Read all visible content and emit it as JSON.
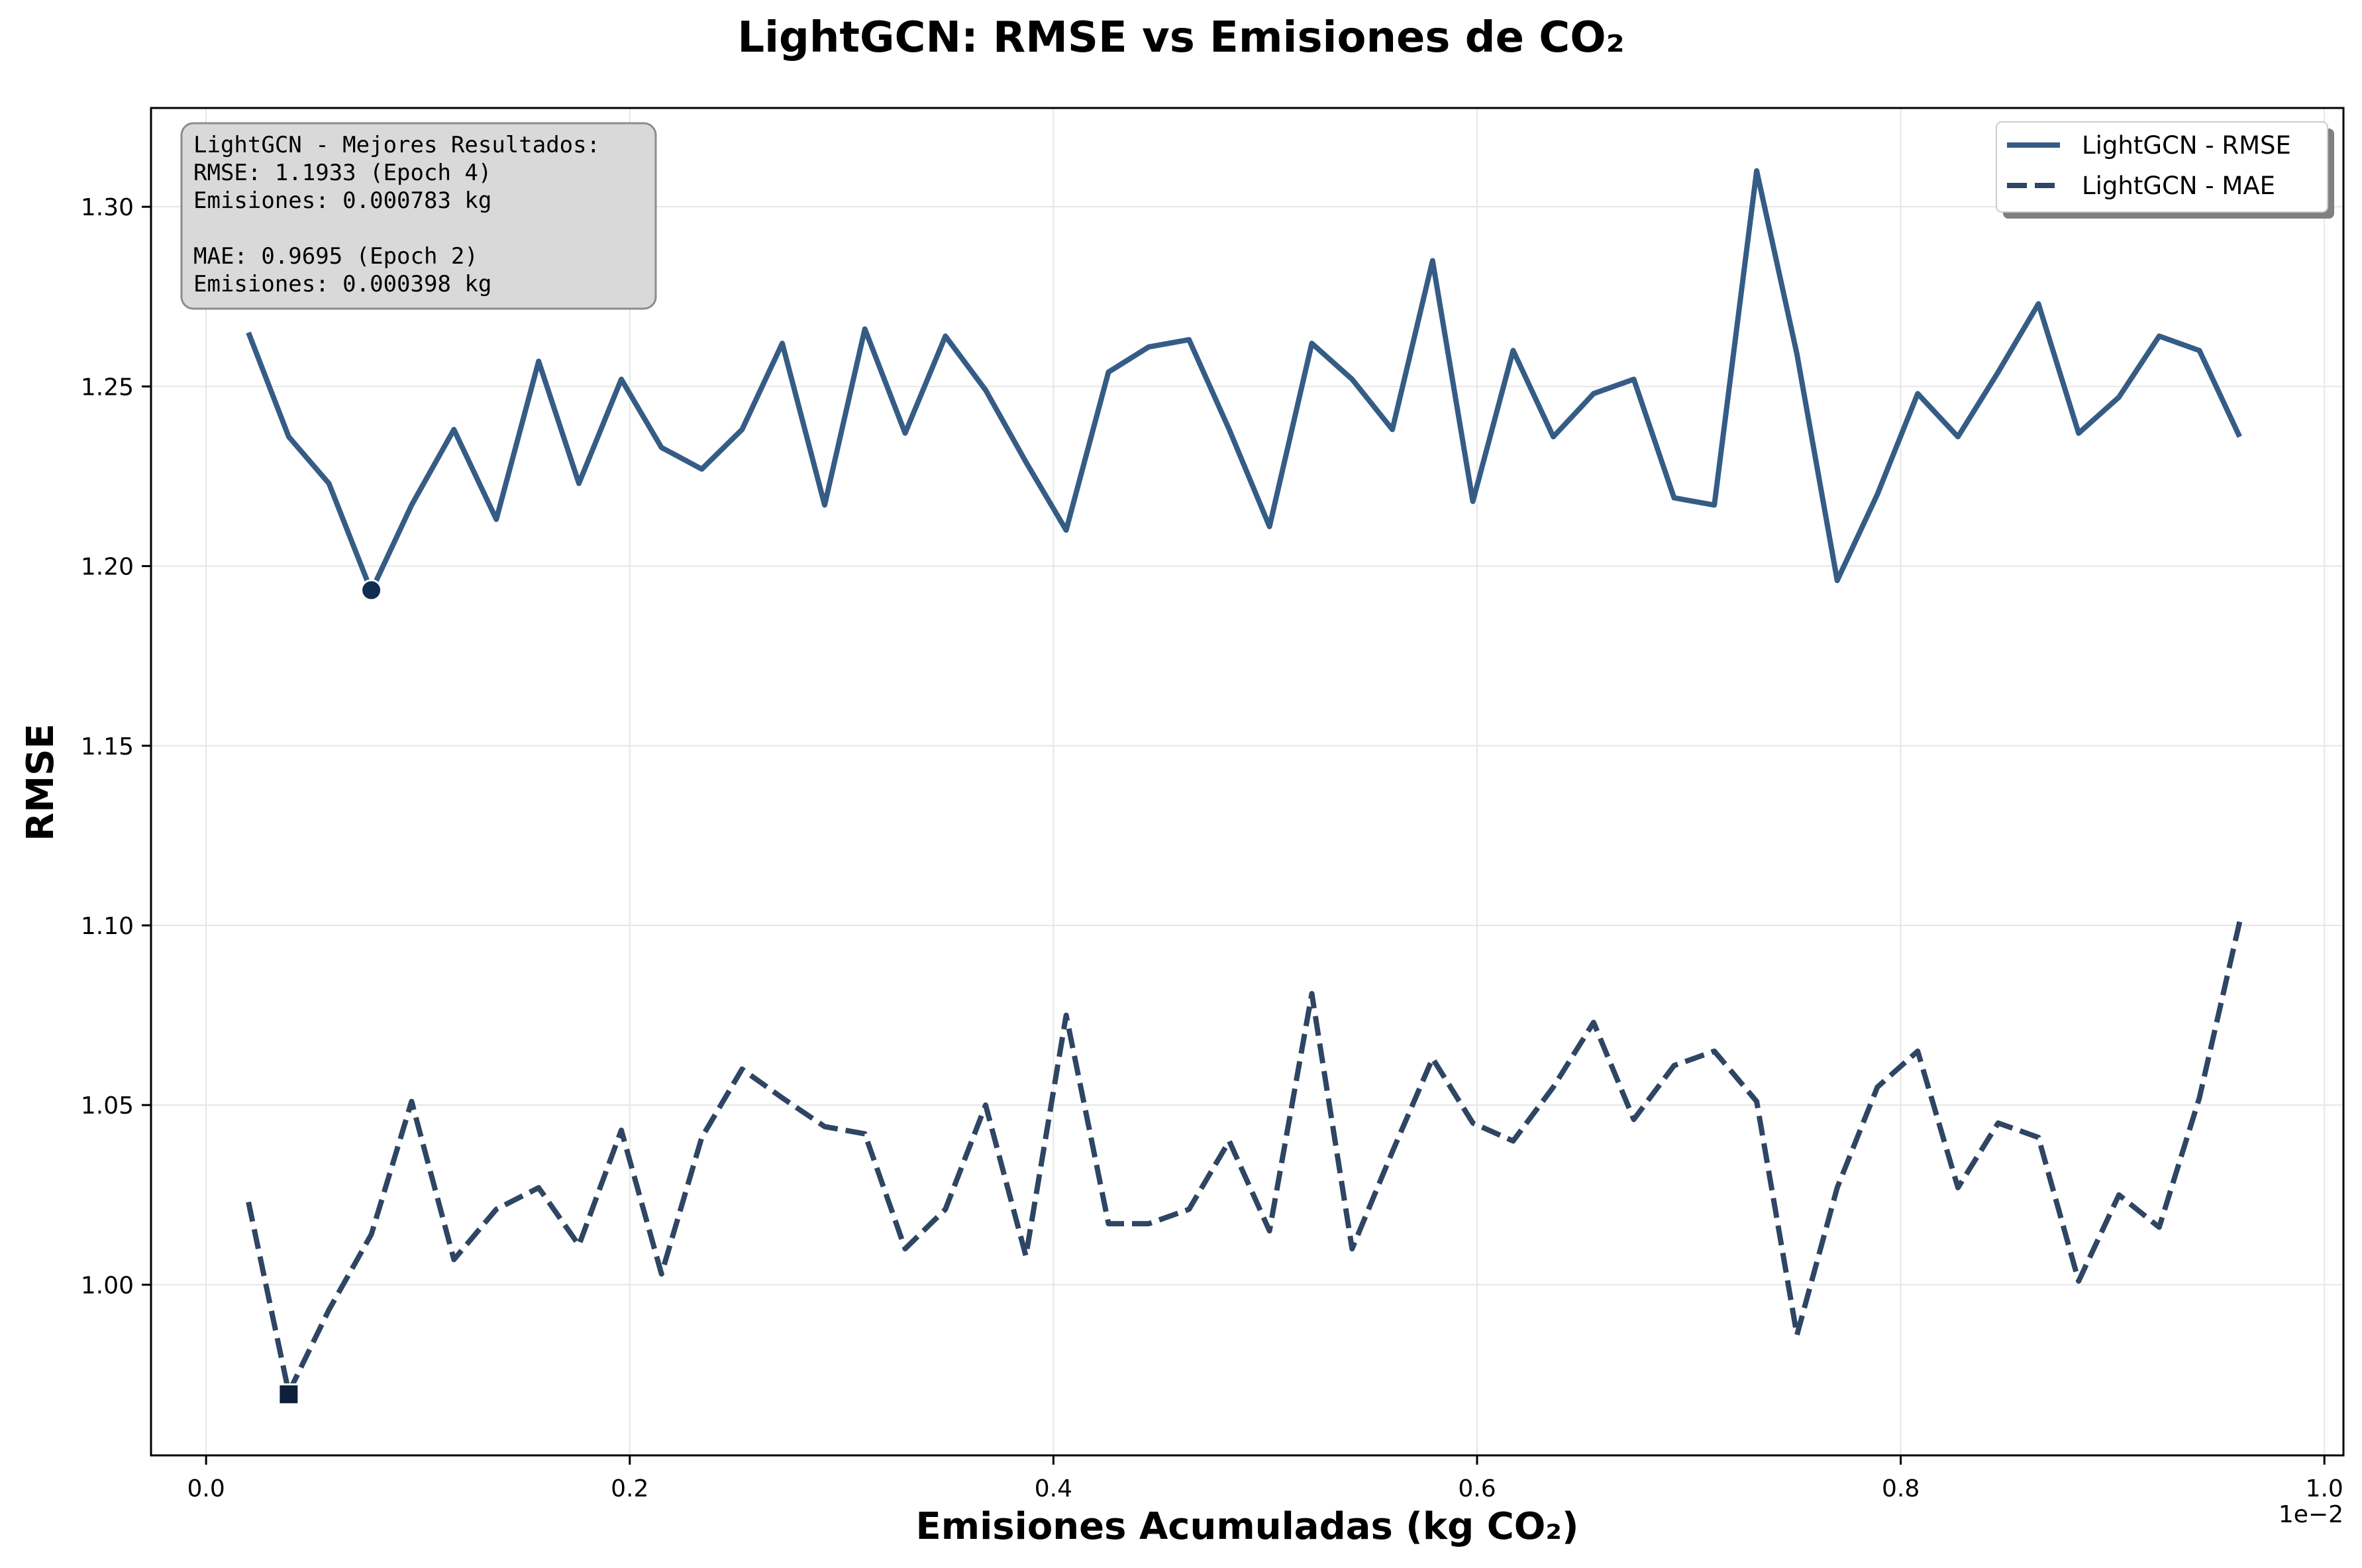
{
  "chart_data": {
    "type": "line",
    "title": "LightGCN: RMSE vs Emisiones de CO₂",
    "xlabel": "Emisiones Acumuladas (kg CO₂)",
    "ylabel": "RMSE",
    "x_offset_text": "1e−2",
    "xlim": [
      -0.026,
      1.009
    ],
    "ylim": [
      0.9525,
      1.3275
    ],
    "x_ticks": [
      0.0,
      0.2,
      0.4,
      0.6,
      0.8,
      1.0
    ],
    "x_tick_labels": [
      "0.0",
      "0.2",
      "0.4",
      "0.6",
      "0.8",
      "1.0"
    ],
    "y_ticks": [
      1.0,
      1.05,
      1.1,
      1.15,
      1.2,
      1.25,
      1.3
    ],
    "y_tick_labels": [
      "1.00",
      "1.05",
      "1.10",
      "1.15",
      "1.20",
      "1.25",
      "1.30"
    ],
    "grid": true,
    "legend_position": "top-right",
    "x": [
      0.02,
      0.039,
      0.058,
      0.078,
      0.097,
      0.117,
      0.137,
      0.157,
      0.176,
      0.196,
      0.215,
      0.234,
      0.253,
      0.272,
      0.292,
      0.311,
      0.33,
      0.349,
      0.368,
      0.387,
      0.406,
      0.426,
      0.445,
      0.464,
      0.483,
      0.502,
      0.522,
      0.541,
      0.56,
      0.579,
      0.598,
      0.617,
      0.636,
      0.655,
      0.674,
      0.693,
      0.712,
      0.732,
      0.751,
      0.77,
      0.789,
      0.808,
      0.827,
      0.846,
      0.865,
      0.884,
      0.903,
      0.922,
      0.941,
      0.96
    ],
    "series": [
      {
        "name": "LightGCN - RMSE",
        "style": "solid",
        "color": "#355c85",
        "values": [
          1.265,
          1.236,
          1.223,
          1.193,
          1.217,
          1.238,
          1.213,
          1.257,
          1.223,
          1.252,
          1.233,
          1.227,
          1.238,
          1.262,
          1.217,
          1.266,
          1.237,
          1.264,
          1.249,
          1.229,
          1.21,
          1.254,
          1.261,
          1.263,
          1.238,
          1.211,
          1.262,
          1.252,
          1.238,
          1.285,
          1.218,
          1.26,
          1.236,
          1.248,
          1.252,
          1.219,
          1.217,
          1.31,
          1.259,
          1.196,
          1.22,
          1.248,
          1.236,
          1.254,
          1.273,
          1.237,
          1.247,
          1.264,
          1.26,
          1.236
        ]
      },
      {
        "name": "LightGCN - MAE",
        "style": "dashed",
        "color": "#2e4563",
        "values": [
          1.023,
          0.97,
          0.993,
          1.014,
          1.051,
          1.007,
          1.021,
          1.027,
          1.011,
          1.043,
          1.003,
          1.041,
          1.06,
          1.052,
          1.044,
          1.042,
          1.01,
          1.021,
          1.05,
          1.008,
          1.075,
          1.017,
          1.017,
          1.021,
          1.04,
          1.015,
          1.081,
          1.01,
          1.037,
          1.063,
          1.045,
          1.04,
          1.055,
          1.073,
          1.046,
          1.061,
          1.065,
          1.051,
          0.986,
          1.027,
          1.055,
          1.065,
          1.027,
          1.045,
          1.041,
          1.001,
          1.025,
          1.016,
          1.052,
          1.101
        ]
      }
    ],
    "markers": [
      {
        "name": "best-rmse-marker",
        "shape": "circle",
        "x": 0.078,
        "y": 1.1933,
        "color": "#0f2d52"
      },
      {
        "name": "best-mae-marker",
        "shape": "square",
        "x": 0.039,
        "y": 0.9695,
        "color": "#0d1f3a"
      }
    ],
    "annotation_lines": [
      "LightGCN - Mejores Resultados:",
      "RMSE: 1.1933 (Epoch 4)",
      "Emisiones: 0.000783 kg",
      "",
      "MAE: 0.9695 (Epoch 2)",
      "Emisiones: 0.000398 kg"
    ],
    "colors": {
      "annotation_box": "#d9d9d9",
      "annotation_border": "#8c8c8c",
      "grid": "#e6e6e6"
    }
  }
}
